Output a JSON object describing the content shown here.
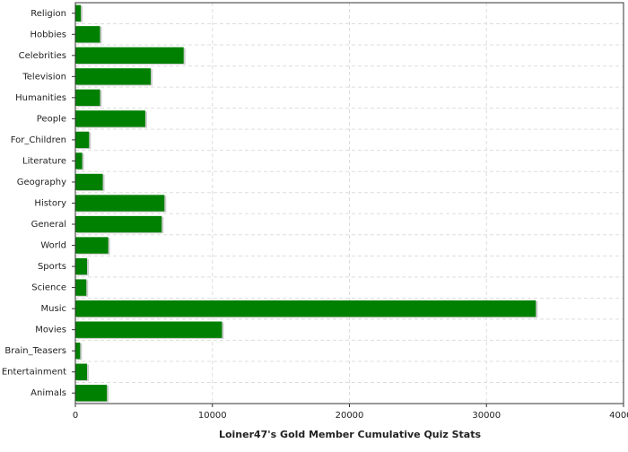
{
  "chart_data": {
    "type": "hbar",
    "title": "Loiner47's Gold Member Cumulative Quiz Stats",
    "categories": [
      "Religion",
      "Hobbies",
      "Celebrities",
      "Television",
      "Humanities",
      "People",
      "For_Children",
      "Literature",
      "Geography",
      "History",
      "General",
      "World",
      "Sports",
      "Science",
      "Music",
      "Movies",
      "Brain_Teasers",
      "Entertainment",
      "Animals"
    ],
    "values": [
      400,
      1800,
      7900,
      5500,
      1800,
      5100,
      1000,
      500,
      2000,
      6500,
      6300,
      2400,
      850,
      800,
      33600,
      10700,
      350,
      850,
      2300
    ],
    "color": "#008000",
    "xlim": [
      0,
      40000
    ],
    "xticks": [
      0,
      10000,
      20000,
      30000,
      40000
    ],
    "grid": true
  }
}
